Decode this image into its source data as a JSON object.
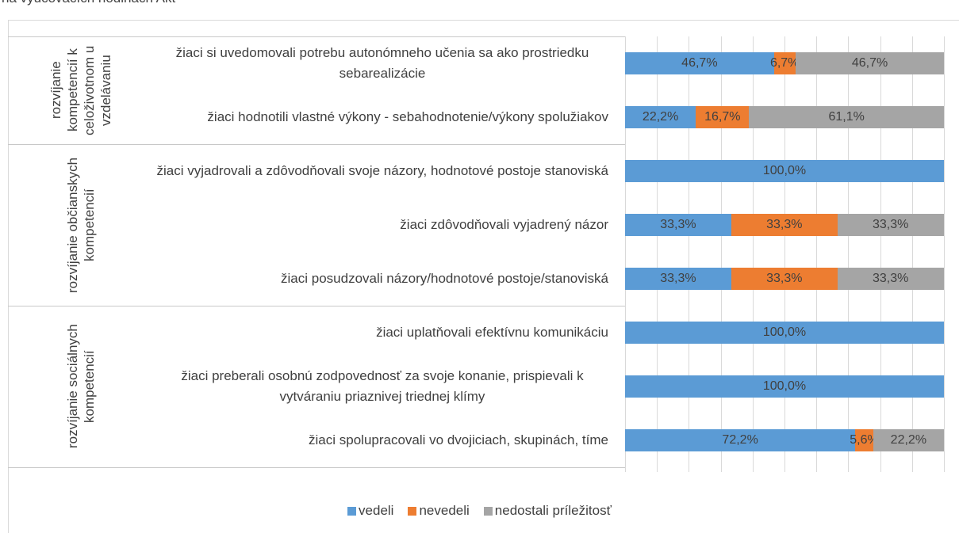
{
  "chart_data": {
    "type": "stacked_barh",
    "title": "na vyučovacích hodinách Akt",
    "groups": [
      {
        "name": "rozvíjanie kompetencií k celoživotnom u vzdelávaniu",
        "categories": [
          "žiaci si uvedomovali  potrebu autonómneho učenia sa ako prostriedku sebarealizácie",
          "žiaci hodnotili vlastné výkony - sebahodnotenie/výkony spolužiakov"
        ]
      },
      {
        "name": "rozvíjanie občianskych kompetencií",
        "categories": [
          "žiaci vyjadrovali  a zdôvodňovali svoje názory, hodnotové postoje stanoviská",
          "žiaci zdôvodňovali vyjadrený názor",
          "žiaci posudzovali názory/hodnotové postoje/stanoviská"
        ]
      },
      {
        "name": "rozvíjanie sociálnych kompetencií",
        "categories": [
          "žiaci uplatňovali efektívnu komunikáciu",
          "žiaci preberali osobnú zodpovednosť za svoje konanie, prispievali k vytváraniu priaznivej triednej klímy",
          "žiaci spolupracovali vo dvojiciach, skupinách, tíme"
        ]
      }
    ],
    "series": [
      {
        "name": "vedeli",
        "color": "#5b9bd5",
        "values": [
          46.7,
          22.2,
          100,
          33.3,
          33.3,
          100,
          100,
          72.2
        ],
        "value_labels": [
          "46,7%",
          "22,2%",
          "100,0%",
          "33,3%",
          "33,3%",
          "100,0%",
          "100,0%",
          "72,2%"
        ]
      },
      {
        "name": "nevedeli",
        "color": "#ed7d31",
        "values": [
          6.7,
          16.7,
          null,
          33.3,
          33.3,
          null,
          null,
          5.6
        ],
        "value_labels": [
          "6,7%",
          "16,7%",
          null,
          "33,3%",
          "33,3%",
          null,
          null,
          "5,6%"
        ]
      },
      {
        "name": "nedostali príležitosť",
        "color": "#a5a5a5",
        "values": [
          46.7,
          61.1,
          null,
          33.3,
          33.3,
          null,
          null,
          22.2
        ],
        "value_labels": [
          "46,7%",
          "61,1%",
          null,
          "33,3%",
          "33,3%",
          null,
          null,
          "22,2%"
        ]
      }
    ],
    "xlim": [
      0,
      100
    ],
    "xticks": [
      0,
      10,
      20,
      30,
      40,
      50,
      60,
      70,
      80,
      90,
      100
    ],
    "grid": true,
    "legend": "bottom"
  }
}
